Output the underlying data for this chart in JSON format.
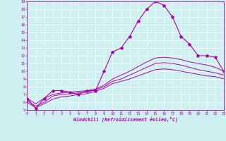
{
  "xlabel": "Windchill (Refroidissement éolien,°C)",
  "background_color": "#cff0f0",
  "line_color": "#aa00aa",
  "grid_color": "#ffffff",
  "xlim": [
    0,
    23
  ],
  "ylim": [
    5,
    19
  ],
  "xticks": [
    0,
    1,
    2,
    3,
    4,
    5,
    6,
    7,
    8,
    9,
    10,
    11,
    12,
    13,
    14,
    15,
    16,
    17,
    18,
    19,
    20,
    21,
    22,
    23
  ],
  "yticks": [
    5,
    6,
    7,
    8,
    9,
    10,
    11,
    12,
    13,
    14,
    15,
    16,
    17,
    18,
    19
  ],
  "main_x": [
    0,
    1,
    2,
    3,
    4,
    5,
    6,
    7,
    8,
    9,
    10,
    11,
    12,
    13,
    14,
    15,
    16,
    17,
    18,
    19,
    20,
    21,
    22,
    23
  ],
  "main_y": [
    6.5,
    5.2,
    6.5,
    7.5,
    7.5,
    7.3,
    7.0,
    7.5,
    7.5,
    10.0,
    12.5,
    13.0,
    14.5,
    16.5,
    18.0,
    19.0,
    18.5,
    17.0,
    14.5,
    13.5,
    12.0,
    12.0,
    11.8,
    10.0
  ],
  "smooth1_x": [
    0,
    1,
    2,
    3,
    4,
    5,
    6,
    7,
    8,
    9,
    10,
    11,
    12,
    13,
    14,
    15,
    16,
    17,
    18,
    19,
    20,
    21,
    22,
    23
  ],
  "smooth1_y": [
    6.5,
    5.8,
    6.5,
    7.0,
    7.2,
    7.3,
    7.4,
    7.5,
    7.7,
    8.2,
    9.0,
    9.5,
    10.0,
    10.6,
    11.2,
    11.7,
    11.8,
    11.7,
    11.5,
    11.2,
    11.0,
    10.8,
    10.5,
    10.0
  ],
  "smooth2_x": [
    0,
    1,
    2,
    3,
    4,
    5,
    6,
    7,
    8,
    9,
    10,
    11,
    12,
    13,
    14,
    15,
    16,
    17,
    18,
    19,
    20,
    21,
    22,
    23
  ],
  "smooth2_y": [
    6.2,
    5.5,
    6.0,
    6.8,
    7.0,
    7.1,
    7.2,
    7.3,
    7.6,
    8.0,
    8.7,
    9.0,
    9.5,
    10.0,
    10.5,
    11.0,
    11.1,
    11.0,
    10.8,
    10.5,
    10.2,
    10.0,
    9.8,
    9.5
  ],
  "smooth3_x": [
    0,
    1,
    2,
    3,
    4,
    5,
    6,
    7,
    8,
    9,
    10,
    11,
    12,
    13,
    14,
    15,
    16,
    17,
    18,
    19,
    20,
    21,
    22,
    23
  ],
  "smooth3_y": [
    6.0,
    5.3,
    5.8,
    6.4,
    6.7,
    6.8,
    7.0,
    7.1,
    7.4,
    7.8,
    8.4,
    8.7,
    9.0,
    9.4,
    9.8,
    10.2,
    10.3,
    10.2,
    10.0,
    9.8,
    9.6,
    9.4,
    9.3,
    9.0
  ]
}
